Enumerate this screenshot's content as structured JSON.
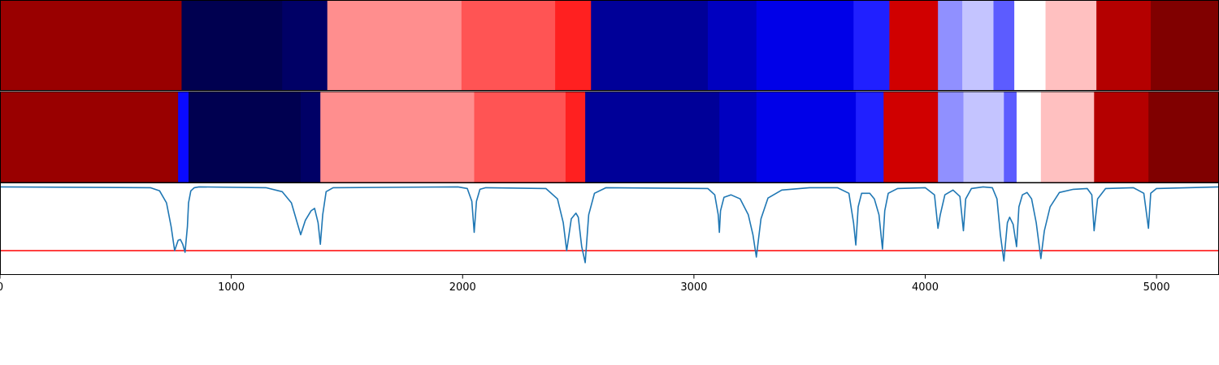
{
  "chart_data": {
    "type": "heatmap",
    "title": "",
    "xlabel": "",
    "ylabel": "",
    "xlim": [
      0,
      5270
    ],
    "xticks": [
      0,
      1000,
      2000,
      3000,
      4000,
      5000
    ],
    "xtick_labels": [
      "0",
      "1000",
      "2000",
      "3000",
      "4000",
      "5000"
    ],
    "grid": false,
    "colormap": "seismic",
    "rows": [
      {
        "segments": [
          {
            "start": 0,
            "end": 785,
            "color": "#990000"
          },
          {
            "start": 785,
            "end": 1220,
            "color": "#000050"
          },
          {
            "start": 1220,
            "end": 1415,
            "color": "#000066"
          },
          {
            "start": 1415,
            "end": 1995,
            "color": "#ff8e8e"
          },
          {
            "start": 1995,
            "end": 2400,
            "color": "#ff5454"
          },
          {
            "start": 2400,
            "end": 2555,
            "color": "#ff2020"
          },
          {
            "start": 2555,
            "end": 3060,
            "color": "#000098"
          },
          {
            "start": 3060,
            "end": 3270,
            "color": "#0000c0"
          },
          {
            "start": 3270,
            "end": 3690,
            "color": "#0000e8"
          },
          {
            "start": 3690,
            "end": 3845,
            "color": "#2020ff"
          },
          {
            "start": 3845,
            "end": 4055,
            "color": "#d00000"
          },
          {
            "start": 4055,
            "end": 4160,
            "color": "#9090ff"
          },
          {
            "start": 4160,
            "end": 4295,
            "color": "#c4c4ff"
          },
          {
            "start": 4295,
            "end": 4385,
            "color": "#5c5cff"
          },
          {
            "start": 4385,
            "end": 4520,
            "color": "#ffffff"
          },
          {
            "start": 4520,
            "end": 4740,
            "color": "#ffc0c0"
          },
          {
            "start": 4740,
            "end": 4975,
            "color": "#b40000"
          },
          {
            "start": 4975,
            "end": 5270,
            "color": "#800000"
          }
        ]
      },
      {
        "segments": [
          {
            "start": 0,
            "end": 770,
            "color": "#990000"
          },
          {
            "start": 770,
            "end": 815,
            "color": "#0a0aff"
          },
          {
            "start": 815,
            "end": 1300,
            "color": "#000050"
          },
          {
            "start": 1300,
            "end": 1385,
            "color": "#000066"
          },
          {
            "start": 1385,
            "end": 2050,
            "color": "#ff8e8e"
          },
          {
            "start": 2050,
            "end": 2445,
            "color": "#ff5454"
          },
          {
            "start": 2445,
            "end": 2530,
            "color": "#ff2020"
          },
          {
            "start": 2530,
            "end": 3110,
            "color": "#000098"
          },
          {
            "start": 3110,
            "end": 3270,
            "color": "#0000c0"
          },
          {
            "start": 3270,
            "end": 3700,
            "color": "#0000e8"
          },
          {
            "start": 3700,
            "end": 3820,
            "color": "#2020ff"
          },
          {
            "start": 3820,
            "end": 4055,
            "color": "#d00000"
          },
          {
            "start": 4055,
            "end": 4165,
            "color": "#9090ff"
          },
          {
            "start": 4165,
            "end": 4340,
            "color": "#c4c4ff"
          },
          {
            "start": 4340,
            "end": 4395,
            "color": "#5c5cff"
          },
          {
            "start": 4395,
            "end": 4500,
            "color": "#ffffff"
          },
          {
            "start": 4500,
            "end": 4730,
            "color": "#ffc0c0"
          },
          {
            "start": 4730,
            "end": 4965,
            "color": "#b40000"
          },
          {
            "start": 4965,
            "end": 5270,
            "color": "#800000"
          }
        ]
      }
    ],
    "line_panel": {
      "ylim": [
        -1.1,
        0.05
      ],
      "line_color": "#1f77b4",
      "threshold": -0.8,
      "threshold_color": "#ff0000",
      "series": {
        "x": [
          0,
          650,
          690,
          720,
          740,
          755,
          770,
          780,
          790,
          800,
          810,
          815,
          825,
          840,
          860,
          1150,
          1220,
          1260,
          1285,
          1300,
          1320,
          1345,
          1360,
          1375,
          1385,
          1395,
          1410,
          1440,
          1980,
          2020,
          2040,
          2050,
          2060,
          2075,
          2100,
          2360,
          2410,
          2435,
          2450,
          2470,
          2490,
          2500,
          2515,
          2530,
          2545,
          2570,
          2620,
          3060,
          3090,
          3105,
          3110,
          3115,
          3130,
          3160,
          3200,
          3235,
          3255,
          3270,
          3290,
          3320,
          3380,
          3500,
          3620,
          3670,
          3690,
          3700,
          3710,
          3725,
          3760,
          3780,
          3800,
          3815,
          3825,
          3840,
          3880,
          4000,
          4040,
          4055,
          4065,
          4085,
          4120,
          4150,
          4165,
          4175,
          4200,
          4250,
          4290,
          4310,
          4325,
          4340,
          4355,
          4365,
          4380,
          4395,
          4405,
          4420,
          4440,
          4460,
          4480,
          4500,
          4515,
          4540,
          4580,
          4640,
          4700,
          4720,
          4730,
          4745,
          4780,
          4900,
          4945,
          4965,
          4975,
          5000,
          5270
        ],
        "y": [
          0,
          -0.01,
          -0.05,
          -0.2,
          -0.5,
          -0.8,
          -0.67,
          -0.66,
          -0.72,
          -0.82,
          -0.5,
          -0.2,
          -0.05,
          -0.01,
          0,
          -0.01,
          -0.06,
          -0.2,
          -0.45,
          -0.6,
          -0.42,
          -0.3,
          -0.27,
          -0.45,
          -0.72,
          -0.35,
          -0.06,
          -0.01,
          0,
          -0.02,
          -0.18,
          -0.57,
          -0.18,
          -0.03,
          -0.01,
          -0.02,
          -0.15,
          -0.45,
          -0.8,
          -0.4,
          -0.33,
          -0.38,
          -0.75,
          -0.95,
          -0.35,
          -0.08,
          -0.01,
          -0.02,
          -0.1,
          -0.35,
          -0.57,
          -0.3,
          -0.13,
          -0.1,
          -0.15,
          -0.35,
          -0.6,
          -0.88,
          -0.4,
          -0.14,
          -0.04,
          -0.01,
          -0.01,
          -0.08,
          -0.45,
          -0.73,
          -0.25,
          -0.08,
          -0.08,
          -0.15,
          -0.35,
          -0.78,
          -0.3,
          -0.08,
          -0.02,
          -0.01,
          -0.1,
          -0.52,
          -0.35,
          -0.1,
          -0.04,
          -0.12,
          -0.55,
          -0.15,
          -0.02,
          0,
          -0.01,
          -0.15,
          -0.6,
          -0.93,
          -0.45,
          -0.38,
          -0.47,
          -0.75,
          -0.25,
          -0.1,
          -0.07,
          -0.15,
          -0.45,
          -0.9,
          -0.55,
          -0.25,
          -0.07,
          -0.03,
          -0.02,
          -0.1,
          -0.55,
          -0.15,
          -0.02,
          -0.01,
          -0.08,
          -0.52,
          -0.08,
          -0.02,
          0
        ]
      }
    }
  }
}
